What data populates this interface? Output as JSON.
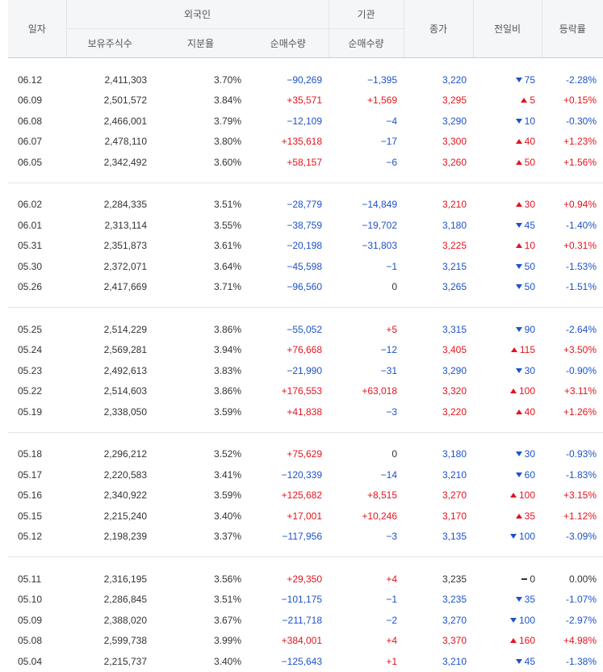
{
  "headers": {
    "date": "일자",
    "foreign": "외국인",
    "institution": "기관",
    "close": "종가",
    "change": "전일비",
    "rate": "등락률",
    "holdings": "보유주식수",
    "ratio": "지분율",
    "foreign_net": "순매수량",
    "inst_net": "순매수량"
  },
  "colors": {
    "up": "#e3141e",
    "down": "#1d52c7",
    "flat": "#333333"
  },
  "groups": [
    [
      {
        "date": "06.12",
        "holdings": "2,411,303",
        "ratio": "3.70%",
        "foreign_net": "−90,269",
        "inst_net": "−1,395",
        "close": "3,220",
        "dir": "down",
        "change": "75",
        "rate": "-2.28%"
      },
      {
        "date": "06.09",
        "holdings": "2,501,572",
        "ratio": "3.84%",
        "foreign_net": "+35,571",
        "inst_net": "+1,569",
        "close": "3,295",
        "dir": "up",
        "change": "5",
        "rate": "+0.15%"
      },
      {
        "date": "06.08",
        "holdings": "2,466,001",
        "ratio": "3.79%",
        "foreign_net": "−12,109",
        "inst_net": "−4",
        "close": "3,290",
        "dir": "down",
        "change": "10",
        "rate": "-0.30%"
      },
      {
        "date": "06.07",
        "holdings": "2,478,110",
        "ratio": "3.80%",
        "foreign_net": "+135,618",
        "inst_net": "−17",
        "close": "3,300",
        "dir": "up",
        "change": "40",
        "rate": "+1.23%"
      },
      {
        "date": "06.05",
        "holdings": "2,342,492",
        "ratio": "3.60%",
        "foreign_net": "+58,157",
        "inst_net": "−6",
        "close": "3,260",
        "dir": "up",
        "change": "50",
        "rate": "+1.56%"
      }
    ],
    [
      {
        "date": "06.02",
        "holdings": "2,284,335",
        "ratio": "3.51%",
        "foreign_net": "−28,779",
        "inst_net": "−14,849",
        "close": "3,210",
        "dir": "up",
        "change": "30",
        "rate": "+0.94%"
      },
      {
        "date": "06.01",
        "holdings": "2,313,114",
        "ratio": "3.55%",
        "foreign_net": "−38,759",
        "inst_net": "−19,702",
        "close": "3,180",
        "dir": "down",
        "change": "45",
        "rate": "-1.40%"
      },
      {
        "date": "05.31",
        "holdings": "2,351,873",
        "ratio": "3.61%",
        "foreign_net": "−20,198",
        "inst_net": "−31,803",
        "close": "3,225",
        "dir": "up",
        "change": "10",
        "rate": "+0.31%"
      },
      {
        "date": "05.30",
        "holdings": "2,372,071",
        "ratio": "3.64%",
        "foreign_net": "−45,598",
        "inst_net": "−1",
        "close": "3,215",
        "dir": "down",
        "change": "50",
        "rate": "-1.53%"
      },
      {
        "date": "05.26",
        "holdings": "2,417,669",
        "ratio": "3.71%",
        "foreign_net": "−96,560",
        "inst_net": "0",
        "close": "3,265",
        "dir": "down",
        "change": "50",
        "rate": "-1.51%"
      }
    ],
    [
      {
        "date": "05.25",
        "holdings": "2,514,229",
        "ratio": "3.86%",
        "foreign_net": "−55,052",
        "inst_net": "+5",
        "close": "3,315",
        "dir": "down",
        "change": "90",
        "rate": "-2.64%"
      },
      {
        "date": "05.24",
        "holdings": "2,569,281",
        "ratio": "3.94%",
        "foreign_net": "+76,668",
        "inst_net": "−12",
        "close": "3,405",
        "dir": "up",
        "change": "115",
        "rate": "+3.50%"
      },
      {
        "date": "05.23",
        "holdings": "2,492,613",
        "ratio": "3.83%",
        "foreign_net": "−21,990",
        "inst_net": "−31",
        "close": "3,290",
        "dir": "down",
        "change": "30",
        "rate": "-0.90%"
      },
      {
        "date": "05.22",
        "holdings": "2,514,603",
        "ratio": "3.86%",
        "foreign_net": "+176,553",
        "inst_net": "+63,018",
        "close": "3,320",
        "dir": "up",
        "change": "100",
        "rate": "+3.11%"
      },
      {
        "date": "05.19",
        "holdings": "2,338,050",
        "ratio": "3.59%",
        "foreign_net": "+41,838",
        "inst_net": "−3",
        "close": "3,220",
        "dir": "up",
        "change": "40",
        "rate": "+1.26%"
      }
    ],
    [
      {
        "date": "05.18",
        "holdings": "2,296,212",
        "ratio": "3.52%",
        "foreign_net": "+75,629",
        "inst_net": "0",
        "close": "3,180",
        "dir": "down",
        "change": "30",
        "rate": "-0.93%"
      },
      {
        "date": "05.17",
        "holdings": "2,220,583",
        "ratio": "3.41%",
        "foreign_net": "−120,339",
        "inst_net": "−14",
        "close": "3,210",
        "dir": "down",
        "change": "60",
        "rate": "-1.83%"
      },
      {
        "date": "05.16",
        "holdings": "2,340,922",
        "ratio": "3.59%",
        "foreign_net": "+125,682",
        "inst_net": "+8,515",
        "close": "3,270",
        "dir": "up",
        "change": "100",
        "rate": "+3.15%"
      },
      {
        "date": "05.15",
        "holdings": "2,215,240",
        "ratio": "3.40%",
        "foreign_net": "+17,001",
        "inst_net": "+10,246",
        "close": "3,170",
        "dir": "up",
        "change": "35",
        "rate": "+1.12%"
      },
      {
        "date": "05.12",
        "holdings": "2,198,239",
        "ratio": "3.37%",
        "foreign_net": "−117,956",
        "inst_net": "−3",
        "close": "3,135",
        "dir": "down",
        "change": "100",
        "rate": "-3.09%"
      }
    ],
    [
      {
        "date": "05.11",
        "holdings": "2,316,195",
        "ratio": "3.56%",
        "foreign_net": "+29,350",
        "inst_net": "+4",
        "close": "3,235",
        "dir": "flat",
        "change": "0",
        "rate": "0.00%"
      },
      {
        "date": "05.10",
        "holdings": "2,286,845",
        "ratio": "3.51%",
        "foreign_net": "−101,175",
        "inst_net": "−1",
        "close": "3,235",
        "dir": "down",
        "change": "35",
        "rate": "-1.07%"
      },
      {
        "date": "05.09",
        "holdings": "2,388,020",
        "ratio": "3.67%",
        "foreign_net": "−211,718",
        "inst_net": "−2",
        "close": "3,270",
        "dir": "down",
        "change": "100",
        "rate": "-2.97%"
      },
      {
        "date": "05.08",
        "holdings": "2,599,738",
        "ratio": "3.99%",
        "foreign_net": "+384,001",
        "inst_net": "+4",
        "close": "3,370",
        "dir": "up",
        "change": "160",
        "rate": "+4.98%"
      },
      {
        "date": "05.04",
        "holdings": "2,215,737",
        "ratio": "3.40%",
        "foreign_net": "−125,643",
        "inst_net": "+1",
        "close": "3,210",
        "dir": "down",
        "change": "45",
        "rate": "-1.38%"
      }
    ]
  ]
}
